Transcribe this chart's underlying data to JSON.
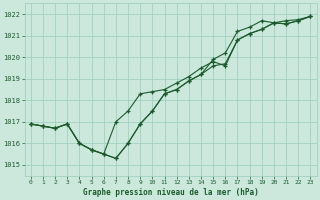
{
  "title": "Graphe pression niveau de la mer (hPa)",
  "bg_color": "#cce8dd",
  "grid_color": "#99ccbb",
  "line_color": "#1a5c2a",
  "xlim": [
    -0.5,
    23.5
  ],
  "ylim": [
    1014.5,
    1022.5
  ],
  "yticks": [
    1015,
    1016,
    1017,
    1018,
    1019,
    1020,
    1021,
    1022
  ],
  "xticks": [
    0,
    1,
    2,
    3,
    4,
    5,
    6,
    7,
    8,
    9,
    10,
    11,
    12,
    13,
    14,
    15,
    16,
    17,
    18,
    19,
    20,
    21,
    22,
    23
  ],
  "line1": [
    1016.9,
    1016.8,
    1016.7,
    1016.9,
    1016.0,
    1015.7,
    1015.5,
    1015.3,
    1016.0,
    1016.9,
    1017.5,
    1018.3,
    1018.5,
    1018.9,
    1019.2,
    1019.6,
    1019.7,
    1020.8,
    1021.1,
    1021.3,
    1021.6,
    1021.55,
    1021.7,
    1021.9
  ],
  "line2": [
    1016.9,
    1016.8,
    1016.7,
    1016.9,
    1016.0,
    1015.7,
    1015.5,
    1017.0,
    1017.5,
    1018.3,
    1018.4,
    1018.5,
    1018.8,
    1019.1,
    1019.5,
    1019.8,
    1019.6,
    1020.8,
    1021.1,
    1021.3,
    1021.6,
    1021.55,
    1021.7,
    1021.9
  ],
  "line3": [
    1016.9,
    1016.8,
    1016.7,
    1016.9,
    1016.0,
    1015.7,
    1015.5,
    1015.3,
    1016.0,
    1016.9,
    1017.5,
    1018.3,
    1018.5,
    1018.9,
    1019.2,
    1019.9,
    1020.2,
    1021.2,
    1021.4,
    1021.7,
    1021.6,
    1021.7,
    1021.75,
    1021.9
  ],
  "figwidth": 3.2,
  "figheight": 2.0,
  "dpi": 100
}
